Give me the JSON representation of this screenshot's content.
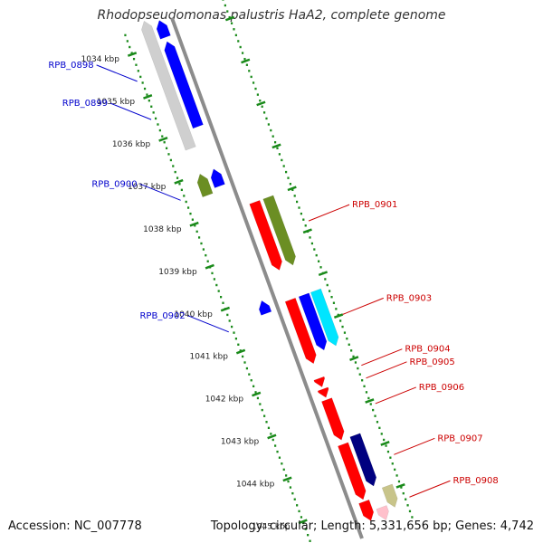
{
  "title": "Rhodopseudomonas palustris HaA2, complete genome",
  "footer": {
    "accession": "Accession: NC_007778",
    "summary": "Topology: circular; Length: 5,331,656 bp; Genes: 4,742"
  },
  "colors": {
    "axis": "#8c8c8c",
    "tick_dots": "#1a8a1a",
    "label_blue": "#0000cc",
    "label_red": "#cc0000",
    "red": "#ff0000",
    "blue": "#0000ff",
    "cyan": "#00e5ff",
    "olive": "#6b8e23",
    "navy": "#000080",
    "khaki": "#c8c48a",
    "gray": "#cfcfcf",
    "pink": "#ffc0cb"
  },
  "ticks": [
    {
      "label": "1034 kbp"
    },
    {
      "label": "1035 kbp"
    },
    {
      "label": "1036 kbp"
    },
    {
      "label": "1037 kbp"
    },
    {
      "label": "1038 kbp"
    },
    {
      "label": "1039 kbp"
    },
    {
      "label": "1040 kbp"
    },
    {
      "label": "1041 kbp"
    },
    {
      "label": "1042 kbp"
    },
    {
      "label": "1043 kbp"
    },
    {
      "label": "1044 kbp"
    },
    {
      "label": "1045 kbp"
    }
  ],
  "features": [
    {
      "name": "",
      "strand": "-",
      "track": 1,
      "start": 1033.5,
      "end": 1033.9,
      "color": "blue"
    },
    {
      "name": "",
      "strand": "-",
      "track": 1,
      "start": 1034.0,
      "end": 1036.0,
      "color": "blue"
    },
    {
      "name": "",
      "strand": "-",
      "track": 2,
      "start": 1033.4,
      "end": 1036.4,
      "color": "gray"
    },
    {
      "name": "",
      "strand": "-",
      "track": 1,
      "start": 1037.0,
      "end": 1037.4,
      "color": "blue"
    },
    {
      "name": "",
      "strand": "-",
      "track": 2,
      "start": 1037.0,
      "end": 1037.5,
      "color": "olive"
    },
    {
      "name": "",
      "strand": "-",
      "track": 1,
      "start": 1040.1,
      "end": 1040.4,
      "color": "blue"
    },
    {
      "name": "",
      "strand": "+",
      "track": 1,
      "start": 1038.0,
      "end": 1039.6,
      "color": "red"
    },
    {
      "name": "",
      "strand": "+",
      "track": 2,
      "start": 1038.0,
      "end": 1039.6,
      "color": "olive"
    },
    {
      "name": "",
      "strand": "+",
      "track": 1,
      "start": 1040.3,
      "end": 1041.8,
      "color": "red"
    },
    {
      "name": "",
      "strand": "+",
      "track": 2,
      "start": 1040.3,
      "end": 1041.6,
      "color": "blue"
    },
    {
      "name": "",
      "strand": "+",
      "track": 3,
      "start": 1040.3,
      "end": 1041.6,
      "color": "cyan"
    },
    {
      "name": "",
      "strand": "+",
      "track": 1,
      "start": 1042.15,
      "end": 1042.35,
      "color": "red"
    },
    {
      "name": "",
      "strand": "+",
      "track": 1,
      "start": 1042.4,
      "end": 1042.6,
      "color": "red"
    },
    {
      "name": "",
      "strand": "+",
      "track": 1,
      "start": 1042.65,
      "end": 1043.6,
      "color": "red"
    },
    {
      "name": "",
      "strand": "+",
      "track": 1,
      "start": 1043.7,
      "end": 1045.0,
      "color": "red"
    },
    {
      "name": "",
      "strand": "+",
      "track": 2,
      "start": 1043.6,
      "end": 1044.8,
      "color": "navy"
    },
    {
      "name": "",
      "strand": "+",
      "track": 3,
      "start": 1044.9,
      "end": 1045.4,
      "color": "khaki"
    },
    {
      "name": "",
      "strand": "+",
      "track": 1,
      "start": 1045.05,
      "end": 1045.5,
      "color": "red"
    },
    {
      "name": "",
      "strand": "+",
      "track": 2,
      "start": 1045.3,
      "end": 1045.6,
      "color": "pink"
    }
  ],
  "gene_labels": [
    {
      "text": "RPB_0898",
      "side": "left",
      "pos": 1034.6
    },
    {
      "text": "RPB_0899",
      "side": "left",
      "pos": 1035.5
    },
    {
      "text": "RPB_0900",
      "side": "left",
      "pos": 1037.4
    },
    {
      "text": "RPB_0902",
      "side": "left",
      "pos": 1040.5
    },
    {
      "text": "RPB_0901",
      "side": "right",
      "pos": 1038.8
    },
    {
      "text": "RPB_0903",
      "side": "right",
      "pos": 1041.0
    },
    {
      "text": "RPB_0904",
      "side": "right",
      "pos": 1042.2
    },
    {
      "text": "RPB_0905",
      "side": "right",
      "pos": 1042.5
    },
    {
      "text": "RPB_0906",
      "side": "right",
      "pos": 1043.1
    },
    {
      "text": "RPB_0907",
      "side": "right",
      "pos": 1044.3
    },
    {
      "text": "RPB_0908",
      "side": "right",
      "pos": 1045.3
    }
  ]
}
